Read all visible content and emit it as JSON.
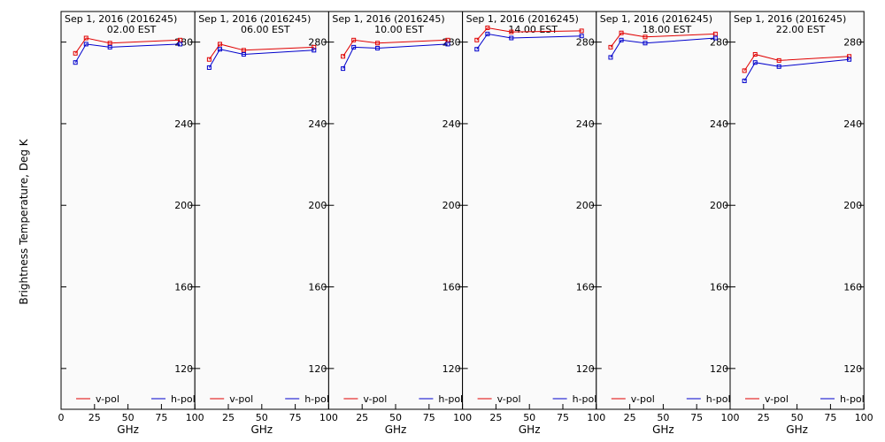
{
  "figure": {
    "ylabel": "Brightness Temperature, Deg K",
    "xlabel": "GHz",
    "date_line": "Sep  1, 2016 (2016245)"
  },
  "colors": {
    "v_pol": "#e00000",
    "h_pol": "#0000cc",
    "panel_bg": "#fafafa",
    "axis": "#000000"
  },
  "chart_data": [
    {
      "type": "line",
      "title": "Sep  1, 2016 (2016245)",
      "subtitle": "02.00 EST",
      "xlabel": "GHz",
      "ylabel": "Brightness Temperature, Deg K",
      "xlim": [
        0,
        100
      ],
      "ylim": [
        100,
        295
      ],
      "xticks": [
        0,
        25,
        50,
        75,
        100
      ],
      "yticks": [
        120,
        160,
        200,
        240,
        280
      ],
      "legend": "bottom",
      "x": [
        10.7,
        18.7,
        36.5,
        89.0
      ],
      "series": [
        {
          "name": "v-pol",
          "values": [
            274.5,
            282.0,
            279.5,
            281.0
          ]
        },
        {
          "name": "h-pol",
          "values": [
            270.0,
            279.0,
            277.5,
            279.0
          ]
        }
      ]
    },
    {
      "type": "line",
      "title": "Sep  1, 2016 (2016245)",
      "subtitle": "06.00 EST",
      "xlabel": "GHz",
      "ylabel": "Brightness Temperature, Deg K",
      "xlim": [
        0,
        100
      ],
      "ylim": [
        100,
        295
      ],
      "xticks": [
        0,
        25,
        50,
        75,
        100
      ],
      "yticks": [
        120,
        160,
        200,
        240,
        280
      ],
      "legend": "bottom",
      "x": [
        10.7,
        18.7,
        36.5,
        89.0
      ],
      "series": [
        {
          "name": "v-pol",
          "values": [
            271.5,
            279.0,
            276.0,
            277.5
          ]
        },
        {
          "name": "h-pol",
          "values": [
            267.5,
            276.5,
            274.0,
            276.0
          ]
        }
      ]
    },
    {
      "type": "line",
      "title": "Sep  1, 2016 (2016245)",
      "subtitle": "10.00 EST",
      "xlabel": "GHz",
      "ylabel": "Brightness Temperature, Deg K",
      "xlim": [
        0,
        100
      ],
      "ylim": [
        100,
        295
      ],
      "xticks": [
        0,
        25,
        50,
        75,
        100
      ],
      "yticks": [
        120,
        160,
        200,
        240,
        280
      ],
      "legend": "bottom",
      "x": [
        10.7,
        18.7,
        36.5,
        89.0
      ],
      "series": [
        {
          "name": "v-pol",
          "values": [
            273.0,
            281.0,
            279.5,
            281.0
          ]
        },
        {
          "name": "h-pol",
          "values": [
            267.0,
            277.5,
            277.0,
            279.0
          ]
        }
      ]
    },
    {
      "type": "line",
      "title": "Sep  1, 2016 (2016245)",
      "subtitle": "14.00 EST",
      "xlabel": "GHz",
      "ylabel": "Brightness Temperature, Deg K",
      "xlim": [
        0,
        100
      ],
      "ylim": [
        100,
        295
      ],
      "xticks": [
        0,
        25,
        50,
        75,
        100
      ],
      "yticks": [
        120,
        160,
        200,
        240,
        280
      ],
      "legend": "bottom",
      "x": [
        10.7,
        18.7,
        36.5,
        89.0
      ],
      "series": [
        {
          "name": "v-pol",
          "values": [
            281.0,
            287.0,
            285.0,
            285.5
          ]
        },
        {
          "name": "h-pol",
          "values": [
            276.5,
            284.0,
            282.0,
            283.0
          ]
        }
      ]
    },
    {
      "type": "line",
      "title": "Sep  1, 2016 (2016245)",
      "subtitle": "18.00 EST",
      "xlabel": "GHz",
      "ylabel": "Brightness Temperature, Deg K",
      "xlim": [
        0,
        100
      ],
      "ylim": [
        100,
        295
      ],
      "xticks": [
        0,
        25,
        50,
        75,
        100
      ],
      "yticks": [
        120,
        160,
        200,
        240,
        280
      ],
      "legend": "bottom",
      "x": [
        10.7,
        18.7,
        36.5,
        89.0
      ],
      "series": [
        {
          "name": "v-pol",
          "values": [
            277.5,
            284.5,
            282.5,
            284.0
          ]
        },
        {
          "name": "h-pol",
          "values": [
            272.5,
            281.0,
            279.5,
            282.0
          ]
        }
      ]
    },
    {
      "type": "line",
      "title": "Sep  1, 2016 (2016245)",
      "subtitle": "22.00 EST",
      "xlabel": "GHz",
      "ylabel": "Brightness Temperature, Deg K",
      "xlim": [
        0,
        100
      ],
      "ylim": [
        100,
        295
      ],
      "xticks": [
        0,
        25,
        50,
        75,
        100
      ],
      "yticks": [
        120,
        160,
        200,
        240,
        280
      ],
      "legend": "bottom",
      "x": [
        10.7,
        18.7,
        36.5,
        89.0
      ],
      "series": [
        {
          "name": "v-pol",
          "values": [
            266.0,
            274.0,
            271.0,
            273.0
          ]
        },
        {
          "name": "h-pol",
          "values": [
            261.0,
            270.0,
            268.0,
            271.5
          ]
        }
      ]
    }
  ]
}
